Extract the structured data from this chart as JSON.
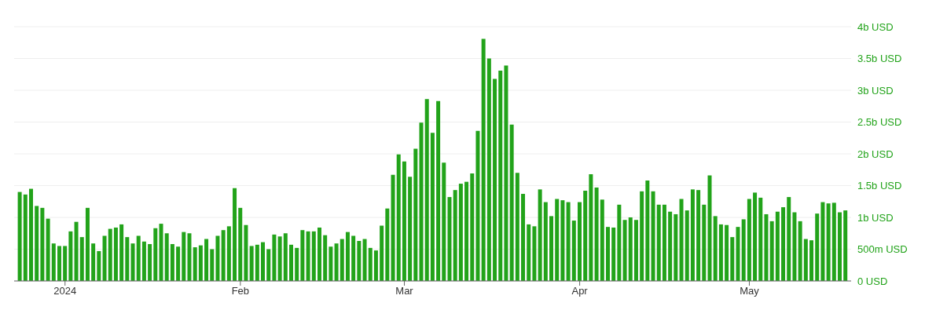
{
  "chart_data": {
    "type": "bar",
    "x": [
      "2023-12-24",
      "2023-12-25",
      "2023-12-26",
      "2023-12-27",
      "2023-12-28",
      "2023-12-29",
      "2023-12-30",
      "2023-12-31",
      "2024-01-01",
      "2024-01-02",
      "2024-01-03",
      "2024-01-04",
      "2024-01-05",
      "2024-01-06",
      "2024-01-07",
      "2024-01-08",
      "2024-01-09",
      "2024-01-10",
      "2024-01-11",
      "2024-01-12",
      "2024-01-13",
      "2024-01-14",
      "2024-01-15",
      "2024-01-16",
      "2024-01-17",
      "2024-01-18",
      "2024-01-19",
      "2024-01-20",
      "2024-01-21",
      "2024-01-22",
      "2024-01-23",
      "2024-01-24",
      "2024-01-25",
      "2024-01-26",
      "2024-01-27",
      "2024-01-28",
      "2024-01-29",
      "2024-01-30",
      "2024-01-31",
      "2024-02-01",
      "2024-02-02",
      "2024-02-03",
      "2024-02-04",
      "2024-02-05",
      "2024-02-06",
      "2024-02-07",
      "2024-02-08",
      "2024-02-09",
      "2024-02-10",
      "2024-02-11",
      "2024-02-12",
      "2024-02-13",
      "2024-02-14",
      "2024-02-15",
      "2024-02-16",
      "2024-02-17",
      "2024-02-18",
      "2024-02-19",
      "2024-02-20",
      "2024-02-21",
      "2024-02-22",
      "2024-02-23",
      "2024-02-24",
      "2024-02-25",
      "2024-02-26",
      "2024-02-27",
      "2024-02-28",
      "2024-02-29",
      "2024-03-01",
      "2024-03-02",
      "2024-03-03",
      "2024-03-04",
      "2024-03-05",
      "2024-03-06",
      "2024-03-07",
      "2024-03-08",
      "2024-03-09",
      "2024-03-10",
      "2024-03-11",
      "2024-03-12",
      "2024-03-13",
      "2024-03-14",
      "2024-03-15",
      "2024-03-16",
      "2024-03-17",
      "2024-03-18",
      "2024-03-19",
      "2024-03-20",
      "2024-03-21",
      "2024-03-22",
      "2024-03-23",
      "2024-03-24",
      "2024-03-25",
      "2024-03-26",
      "2024-03-27",
      "2024-03-28",
      "2024-03-29",
      "2024-03-30",
      "2024-03-31",
      "2024-04-01",
      "2024-04-02",
      "2024-04-03",
      "2024-04-04",
      "2024-04-05",
      "2024-04-06",
      "2024-04-07",
      "2024-04-08",
      "2024-04-09",
      "2024-04-10",
      "2024-04-11",
      "2024-04-12",
      "2024-04-13",
      "2024-04-14",
      "2024-04-15",
      "2024-04-16",
      "2024-04-17",
      "2024-04-18",
      "2024-04-19",
      "2024-04-20",
      "2024-04-21",
      "2024-04-22",
      "2024-04-23",
      "2024-04-24",
      "2024-04-25",
      "2024-04-26",
      "2024-04-27",
      "2024-04-28",
      "2024-04-29",
      "2024-04-30",
      "2024-05-01",
      "2024-05-02",
      "2024-05-03",
      "2024-05-04",
      "2024-05-05",
      "2024-05-06",
      "2024-05-07",
      "2024-05-08",
      "2024-05-09",
      "2024-05-10",
      "2024-05-11",
      "2024-05-12",
      "2024-05-13",
      "2024-05-14",
      "2024-05-15",
      "2024-05-16",
      "2024-05-17",
      "2024-05-18"
    ],
    "values": [
      1400000000.0,
      1360000000.0,
      1450000000.0,
      1180000000.0,
      1150000000.0,
      980000000.0,
      590000000.0,
      550000000.0,
      550000000.0,
      780000000.0,
      930000000.0,
      690000000.0,
      1150000000.0,
      590000000.0,
      470000000.0,
      710000000.0,
      820000000.0,
      840000000.0,
      890000000.0,
      690000000.0,
      590000000.0,
      710000000.0,
      620000000.0,
      580000000.0,
      830000000.0,
      900000000.0,
      750000000.0,
      580000000.0,
      540000000.0,
      770000000.0,
      750000000.0,
      530000000.0,
      560000000.0,
      660000000.0,
      500000000.0,
      710000000.0,
      800000000.0,
      860000000.0,
      1460000000.0,
      1150000000.0,
      880000000.0,
      550000000.0,
      570000000.0,
      610000000.0,
      500000000.0,
      730000000.0,
      700000000.0,
      750000000.0,
      570000000.0,
      520000000.0,
      800000000.0,
      780000000.0,
      780000000.0,
      840000000.0,
      720000000.0,
      540000000.0,
      590000000.0,
      660000000.0,
      770000000.0,
      710000000.0,
      630000000.0,
      660000000.0,
      520000000.0,
      480000000.0,
      870000000.0,
      1140000000.0,
      1670000000.0,
      1990000000.0,
      1880000000.0,
      1640000000.0,
      2080000000.0,
      2490000000.0,
      2860000000.0,
      2330000000.0,
      2830000000.0,
      1860000000.0,
      1320000000.0,
      1430000000.0,
      1530000000.0,
      1560000000.0,
      1690000000.0,
      2360000000.0,
      3810000000.0,
      3500000000.0,
      3180000000.0,
      3310000000.0,
      3390000000.0,
      2460000000.0,
      1700000000.0,
      1370000000.0,
      890000000.0,
      860000000.0,
      1440000000.0,
      1240000000.0,
      1020000000.0,
      1290000000.0,
      1270000000.0,
      1240000000.0,
      950000000.0,
      1240000000.0,
      1420000000.0,
      1680000000.0,
      1470000000.0,
      1280000000.0,
      850000000.0,
      840000000.0,
      1200000000.0,
      960000000.0,
      1000000000.0,
      960000000.0,
      1410000000.0,
      1580000000.0,
      1410000000.0,
      1200000000.0,
      1200000000.0,
      1090000000.0,
      1050000000.0,
      1290000000.0,
      1110000000.0,
      1440000000.0,
      1430000000.0,
      1200000000.0,
      1660000000.0,
      1020000000.0,
      890000000.0,
      880000000.0,
      690000000.0,
      850000000.0,
      970000000.0,
      1290000000.0,
      1390000000.0,
      1310000000.0,
      1050000000.0,
      940000000.0,
      1090000000.0,
      1160000000.0,
      1320000000.0,
      1080000000.0,
      940000000.0,
      660000000.0,
      640000000.0,
      1060000000.0,
      1240000000.0,
      1220000000.0,
      1230000000.0,
      1080000000.0,
      1110000000.0
    ],
    "color": "#22a31a",
    "xlim": [
      "2023-12-23",
      "2024-05-19"
    ],
    "xticks": [
      {
        "value": "2024-01-01",
        "label": "2024"
      },
      {
        "value": "2024-02-01",
        "label": "Feb"
      },
      {
        "value": "2024-03-01",
        "label": "Mar"
      },
      {
        "value": "2024-04-01",
        "label": "Apr"
      },
      {
        "value": "2024-05-01",
        "label": "May"
      }
    ],
    "ylim": [
      0,
      4000000000
    ],
    "yticks": [
      {
        "value": 0,
        "label": "0 USD"
      },
      {
        "value": 500000000,
        "label": "500m USD"
      },
      {
        "value": 1000000000,
        "label": "1b USD"
      },
      {
        "value": 1500000000,
        "label": "1.5b USD"
      },
      {
        "value": 2000000000,
        "label": "2b USD"
      },
      {
        "value": 2500000000,
        "label": "2.5b USD"
      },
      {
        "value": 3000000000,
        "label": "3b USD"
      },
      {
        "value": 3500000000,
        "label": "3.5b USD"
      },
      {
        "value": 4000000000,
        "label": "4b USD"
      }
    ],
    "grid": "y",
    "legend": false
  }
}
